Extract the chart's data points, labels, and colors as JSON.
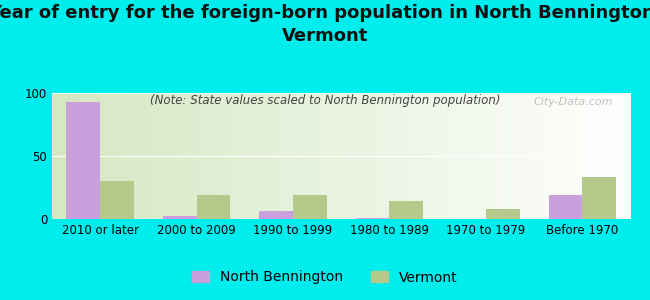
{
  "title": "Year of entry for the foreign-born population in North Bennington,\nVermont",
  "subtitle": "(Note: State values scaled to North Bennington population)",
  "categories": [
    "2010 or later",
    "2000 to 2009",
    "1990 to 1999",
    "1980 to 1989",
    "1970 to 1979",
    "Before 1970"
  ],
  "north_bennington": [
    93,
    2,
    6,
    1,
    0,
    19
  ],
  "vermont": [
    30,
    19,
    19,
    14,
    8,
    33
  ],
  "nb_color": "#c9a0dc",
  "vt_color": "#b5c98a",
  "background_color": "#00eded",
  "ylim": [
    0,
    100
  ],
  "yticks": [
    0,
    50,
    100
  ],
  "watermark": "City-Data.com",
  "bar_width": 0.35,
  "title_fontsize": 13,
  "subtitle_fontsize": 8.5,
  "tick_fontsize": 8.5,
  "legend_fontsize": 10
}
